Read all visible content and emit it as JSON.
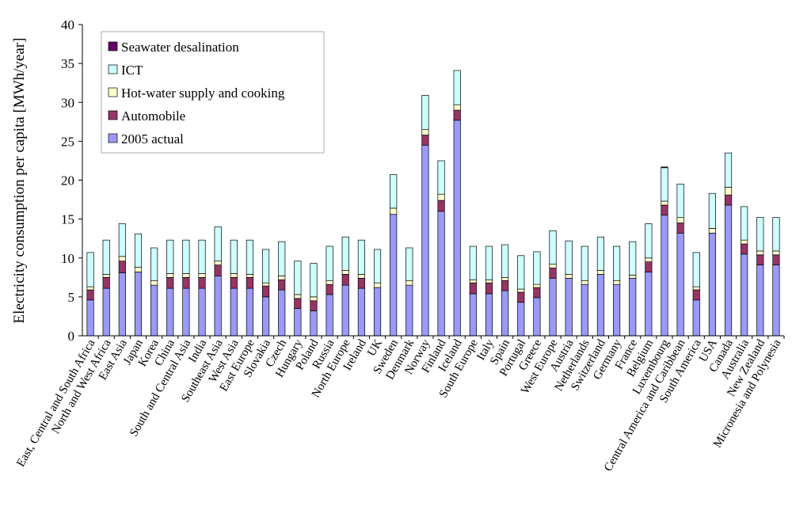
{
  "chart_data": {
    "type": "bar",
    "stacked": true,
    "title": "",
    "xlabel": "",
    "ylabel": "Electricity consumption per capita [MWh/year]",
    "ylim": [
      0,
      40
    ],
    "yticks": [
      0,
      5,
      10,
      15,
      20,
      25,
      30,
      35,
      40
    ],
    "grid": false,
    "legend_position": "top-left",
    "categories": [
      "East, Central and South Africa",
      "North and West Africa",
      "East Asia",
      "Japan",
      "Korea",
      "China",
      "South and Central Asia",
      "India",
      "Southeast Asia",
      "West Asia",
      "East Europe",
      "Slovakia",
      "Czech",
      "Hungary",
      "Poland",
      "Russia",
      "North Europe",
      "Ireland",
      "UK",
      "Sweden",
      "Denmark",
      "Norway",
      "Finland",
      "Iceland",
      "South Europe",
      "Italy",
      "Spain",
      "Portugal",
      "Greece",
      "West Europe",
      "Austria",
      "Netherlands",
      "Switzerland",
      "Germany",
      "France",
      "Belgium",
      "Luxembourg",
      "Central America and Caribbean",
      "South America",
      "USA",
      "Canada",
      "Australia",
      "New Zealand",
      "Micronesia and Polynesia"
    ],
    "series": [
      {
        "name": "2005 actual",
        "color": "#9999ff",
        "values": [
          4.6,
          6.1,
          8.1,
          8.2,
          6.5,
          6.1,
          6.1,
          6.1,
          7.7,
          6.1,
          6.1,
          5.0,
          5.9,
          3.5,
          3.2,
          5.3,
          6.5,
          6.1,
          6.2,
          15.6,
          6.5,
          24.5,
          16.0,
          27.7,
          5.4,
          5.4,
          5.8,
          4.3,
          4.9,
          7.4,
          7.4,
          6.6,
          7.9,
          6.6,
          7.4,
          8.2,
          15.5,
          13.2,
          4.6,
          13.2,
          16.8,
          10.5,
          9.1,
          9.1
        ]
      },
      {
        "name": "Automobile",
        "color": "#993366",
        "values": [
          1.3,
          1.4,
          1.5,
          0.0,
          0.0,
          1.4,
          1.4,
          1.4,
          1.4,
          1.4,
          1.4,
          1.4,
          1.3,
          1.3,
          1.3,
          1.3,
          1.4,
          1.3,
          0.0,
          0.0,
          0.0,
          1.3,
          1.4,
          1.3,
          1.4,
          1.4,
          1.3,
          1.3,
          1.3,
          1.3,
          0.0,
          0.0,
          0.0,
          0.0,
          0.0,
          1.3,
          1.3,
          1.3,
          1.3,
          0.0,
          1.3,
          1.3,
          1.3,
          1.3
        ]
      },
      {
        "name": "Hot-water supply and cooking",
        "color": "#ffffcc",
        "values": [
          0.4,
          0.4,
          0.6,
          0.6,
          0.6,
          0.5,
          0.5,
          0.5,
          0.5,
          0.5,
          0.4,
          0.4,
          0.5,
          0.5,
          0.5,
          0.5,
          0.5,
          0.5,
          0.6,
          0.8,
          0.6,
          0.7,
          0.8,
          0.7,
          0.4,
          0.4,
          0.4,
          0.4,
          0.4,
          0.5,
          0.5,
          0.5,
          0.5,
          0.5,
          0.4,
          0.5,
          0.5,
          0.7,
          0.4,
          0.6,
          1.0,
          0.5,
          0.5,
          0.5
        ]
      },
      {
        "name": "ICT",
        "color": "#ccffff",
        "values": [
          4.4,
          4.4,
          4.2,
          4.3,
          4.2,
          4.3,
          4.3,
          4.3,
          4.4,
          4.3,
          4.4,
          4.3,
          4.4,
          4.3,
          4.3,
          4.4,
          4.3,
          4.4,
          4.3,
          4.3,
          4.2,
          4.4,
          4.3,
          4.4,
          4.3,
          4.3,
          4.2,
          4.3,
          4.2,
          4.3,
          4.3,
          4.4,
          4.3,
          4.4,
          4.3,
          4.4,
          4.3,
          4.3,
          4.4,
          4.5,
          4.4,
          4.3,
          4.3,
          4.3
        ]
      },
      {
        "name": "Seawater desalination",
        "color": "#660066",
        "values": [
          0,
          0,
          0,
          0,
          0,
          0,
          0,
          0,
          0,
          0,
          0,
          0,
          0,
          0,
          0,
          0,
          0,
          0,
          0,
          0,
          0,
          0,
          0,
          0,
          0,
          0,
          0,
          0,
          0,
          0,
          0,
          0,
          0,
          0,
          0,
          0,
          0.1,
          0,
          0,
          0,
          0,
          0,
          0,
          0
        ]
      }
    ]
  }
}
